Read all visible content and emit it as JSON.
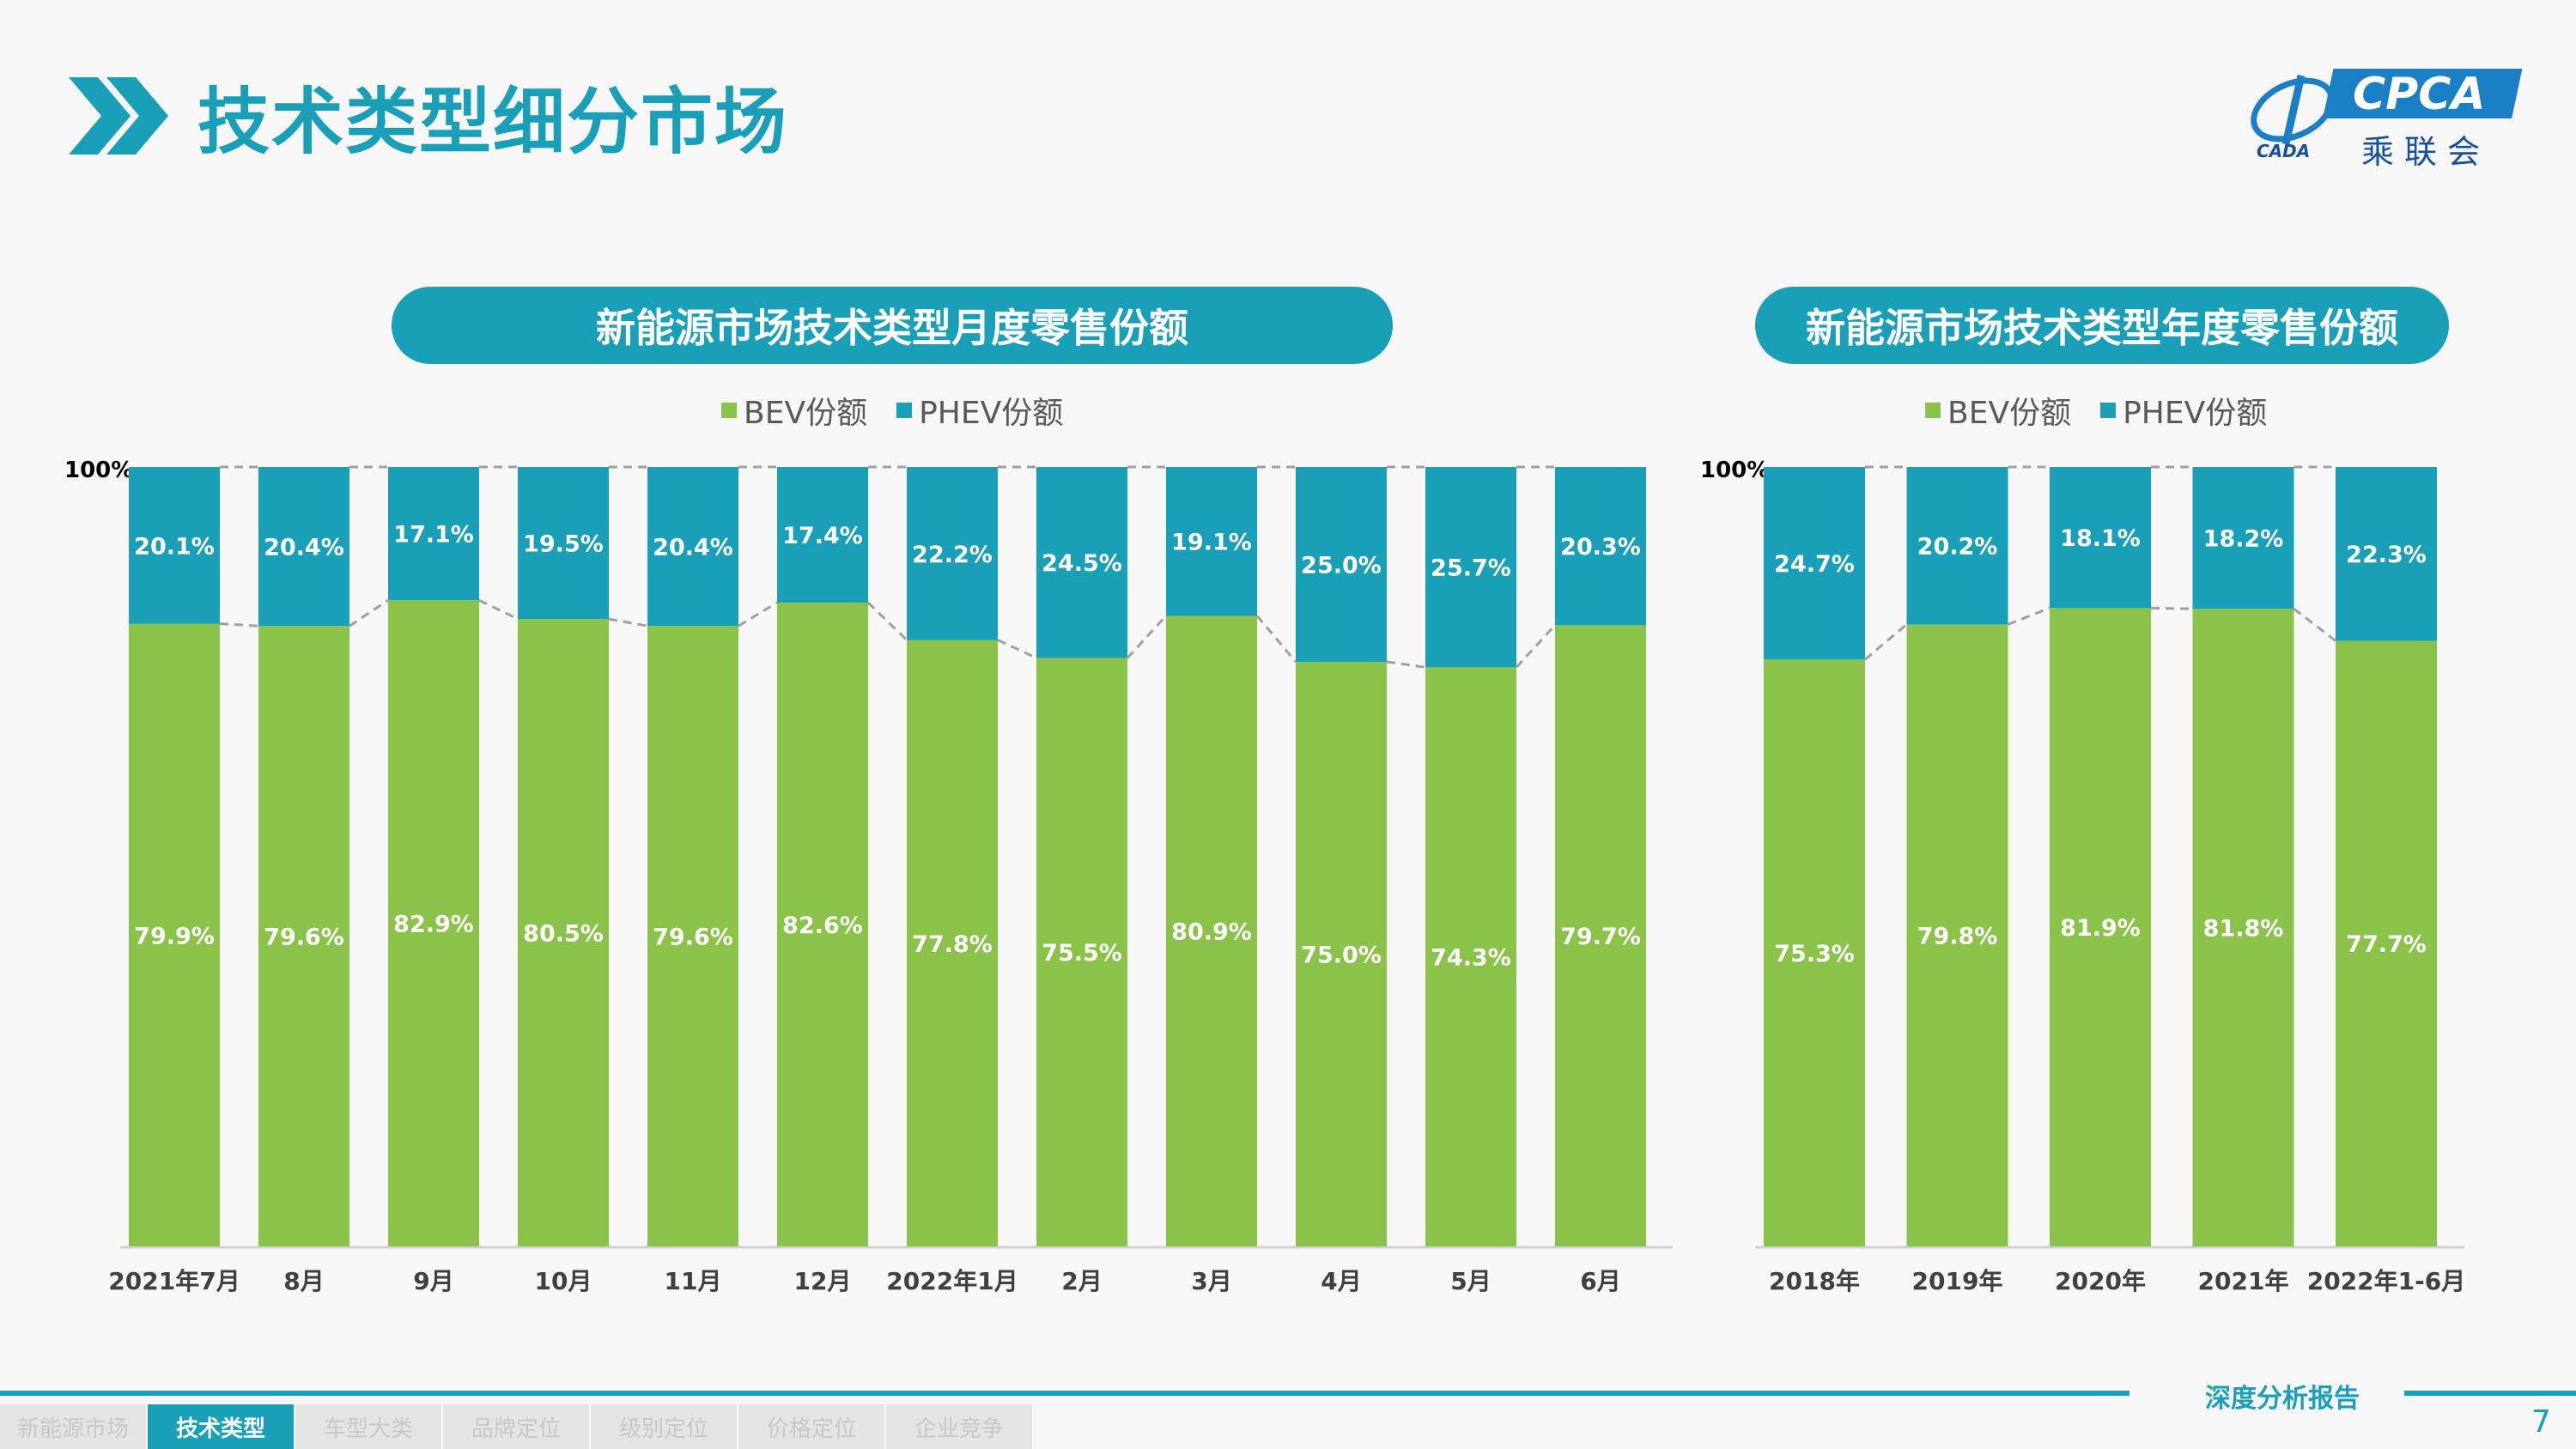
{
  "header": {
    "title": "技术类型细分市场"
  },
  "logo": {
    "brand": "CPCA",
    "sub": "乘联会",
    "mark": "CADA"
  },
  "colors": {
    "accent": "#1a9fb8",
    "bev": "#8bc34a",
    "phev": "#1a9fb8"
  },
  "chart_data": [
    {
      "type": "bar",
      "stacked": true,
      "title": "新能源市场技术类型月度零售份额",
      "ylabel_top": "100%",
      "categories": [
        "2021年7月",
        "8月",
        "9月",
        "10月",
        "11月",
        "12月",
        "2022年1月",
        "2月",
        "3月",
        "4月",
        "5月",
        "6月"
      ],
      "series": [
        {
          "name": "BEV份额",
          "values": [
            79.9,
            79.6,
            82.9,
            80.5,
            79.6,
            82.6,
            77.8,
            75.5,
            80.9,
            75.0,
            74.3,
            79.7
          ],
          "labels": [
            "79.9%",
            "79.6%",
            "82.9%",
            "80.5%",
            "79.6%",
            "82.6%",
            "77.8%",
            "75.5%",
            "80.9%",
            "75.0%",
            "74.3%",
            "79.7%"
          ]
        },
        {
          "name": "PHEV份额",
          "values": [
            20.1,
            20.4,
            17.1,
            19.5,
            20.4,
            17.4,
            22.2,
            24.5,
            19.1,
            25.0,
            25.7,
            20.3
          ],
          "labels": [
            "20.1%",
            "20.4%",
            "17.1%",
            "19.5%",
            "20.4%",
            "17.4%",
            "22.2%",
            "24.5%",
            "19.1%",
            "25.0%",
            "25.7%",
            "20.3%"
          ]
        }
      ],
      "ylim": [
        0,
        100
      ],
      "legend": "top-center"
    },
    {
      "type": "bar",
      "stacked": true,
      "title": "新能源市场技术类型年度零售份额",
      "ylabel_top": "100%",
      "categories": [
        "2018年",
        "2019年",
        "2020年",
        "2021年",
        "2022年1-6月"
      ],
      "series": [
        {
          "name": "BEV份额",
          "values": [
            75.3,
            79.8,
            81.9,
            81.8,
            77.7
          ],
          "labels": [
            "75.3%",
            "79.8%",
            "81.9%",
            "81.8%",
            "77.7%"
          ]
        },
        {
          "name": "PHEV份额",
          "values": [
            24.7,
            20.2,
            18.1,
            18.2,
            22.3
          ],
          "labels": [
            "24.7%",
            "20.2%",
            "18.1%",
            "18.2%",
            "22.3%"
          ]
        }
      ],
      "ylim": [
        0,
        100
      ],
      "legend": "top-center"
    }
  ],
  "footer": {
    "tag": "深度分析报告",
    "page": "7",
    "tabs": [
      {
        "label": "新能源市场",
        "active": false
      },
      {
        "label": "技术类型",
        "active": true
      },
      {
        "label": "车型大类",
        "active": false
      },
      {
        "label": "品牌定位",
        "active": false
      },
      {
        "label": "级别定位",
        "active": false
      },
      {
        "label": "价格定位",
        "active": false
      },
      {
        "label": "企业竞争",
        "active": false
      }
    ]
  }
}
